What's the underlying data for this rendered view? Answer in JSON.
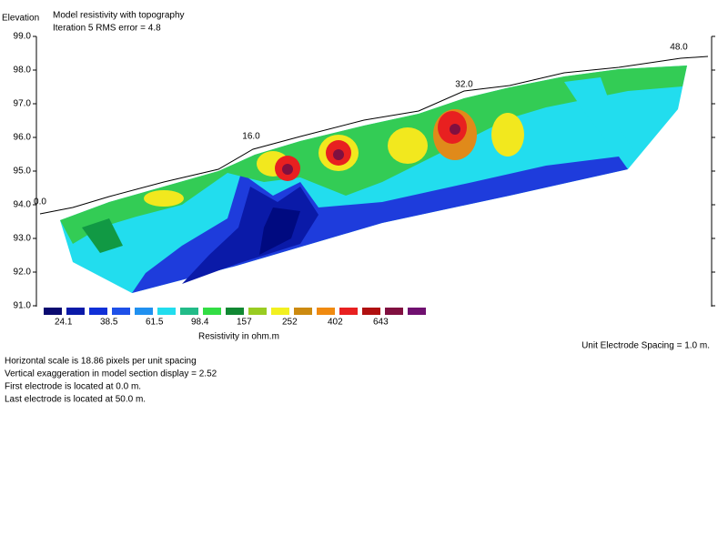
{
  "header": {
    "y_axis_title": "Elevation",
    "title": "Model resistivity with topography",
    "subtitle": "Iteration 5 RMS error = 4.8"
  },
  "elevation_ticks": [
    "99.0",
    "98.0",
    "97.0",
    "96.0",
    "95.0",
    "94.0",
    "93.0",
    "92.0",
    "91.0"
  ],
  "distance_labels": [
    "0.0",
    "16.0",
    "32.0",
    "48.0"
  ],
  "color_scale": {
    "labels": [
      "24.1",
      "38.5",
      "61.5",
      "98.4",
      "157",
      "252",
      "402",
      "643"
    ],
    "title": "Resistivity in ohm.m"
  },
  "unit_spacing": "Unit Electrode Spacing = 1.0 m.",
  "notes": [
    "Horizontal scale is 18.86 pixels per unit spacing",
    "Vertical exaggeration in model section display = 2.52",
    "First electrode is located at 0.0  m.",
    "Last electrode is located at 50.0 m."
  ]
}
